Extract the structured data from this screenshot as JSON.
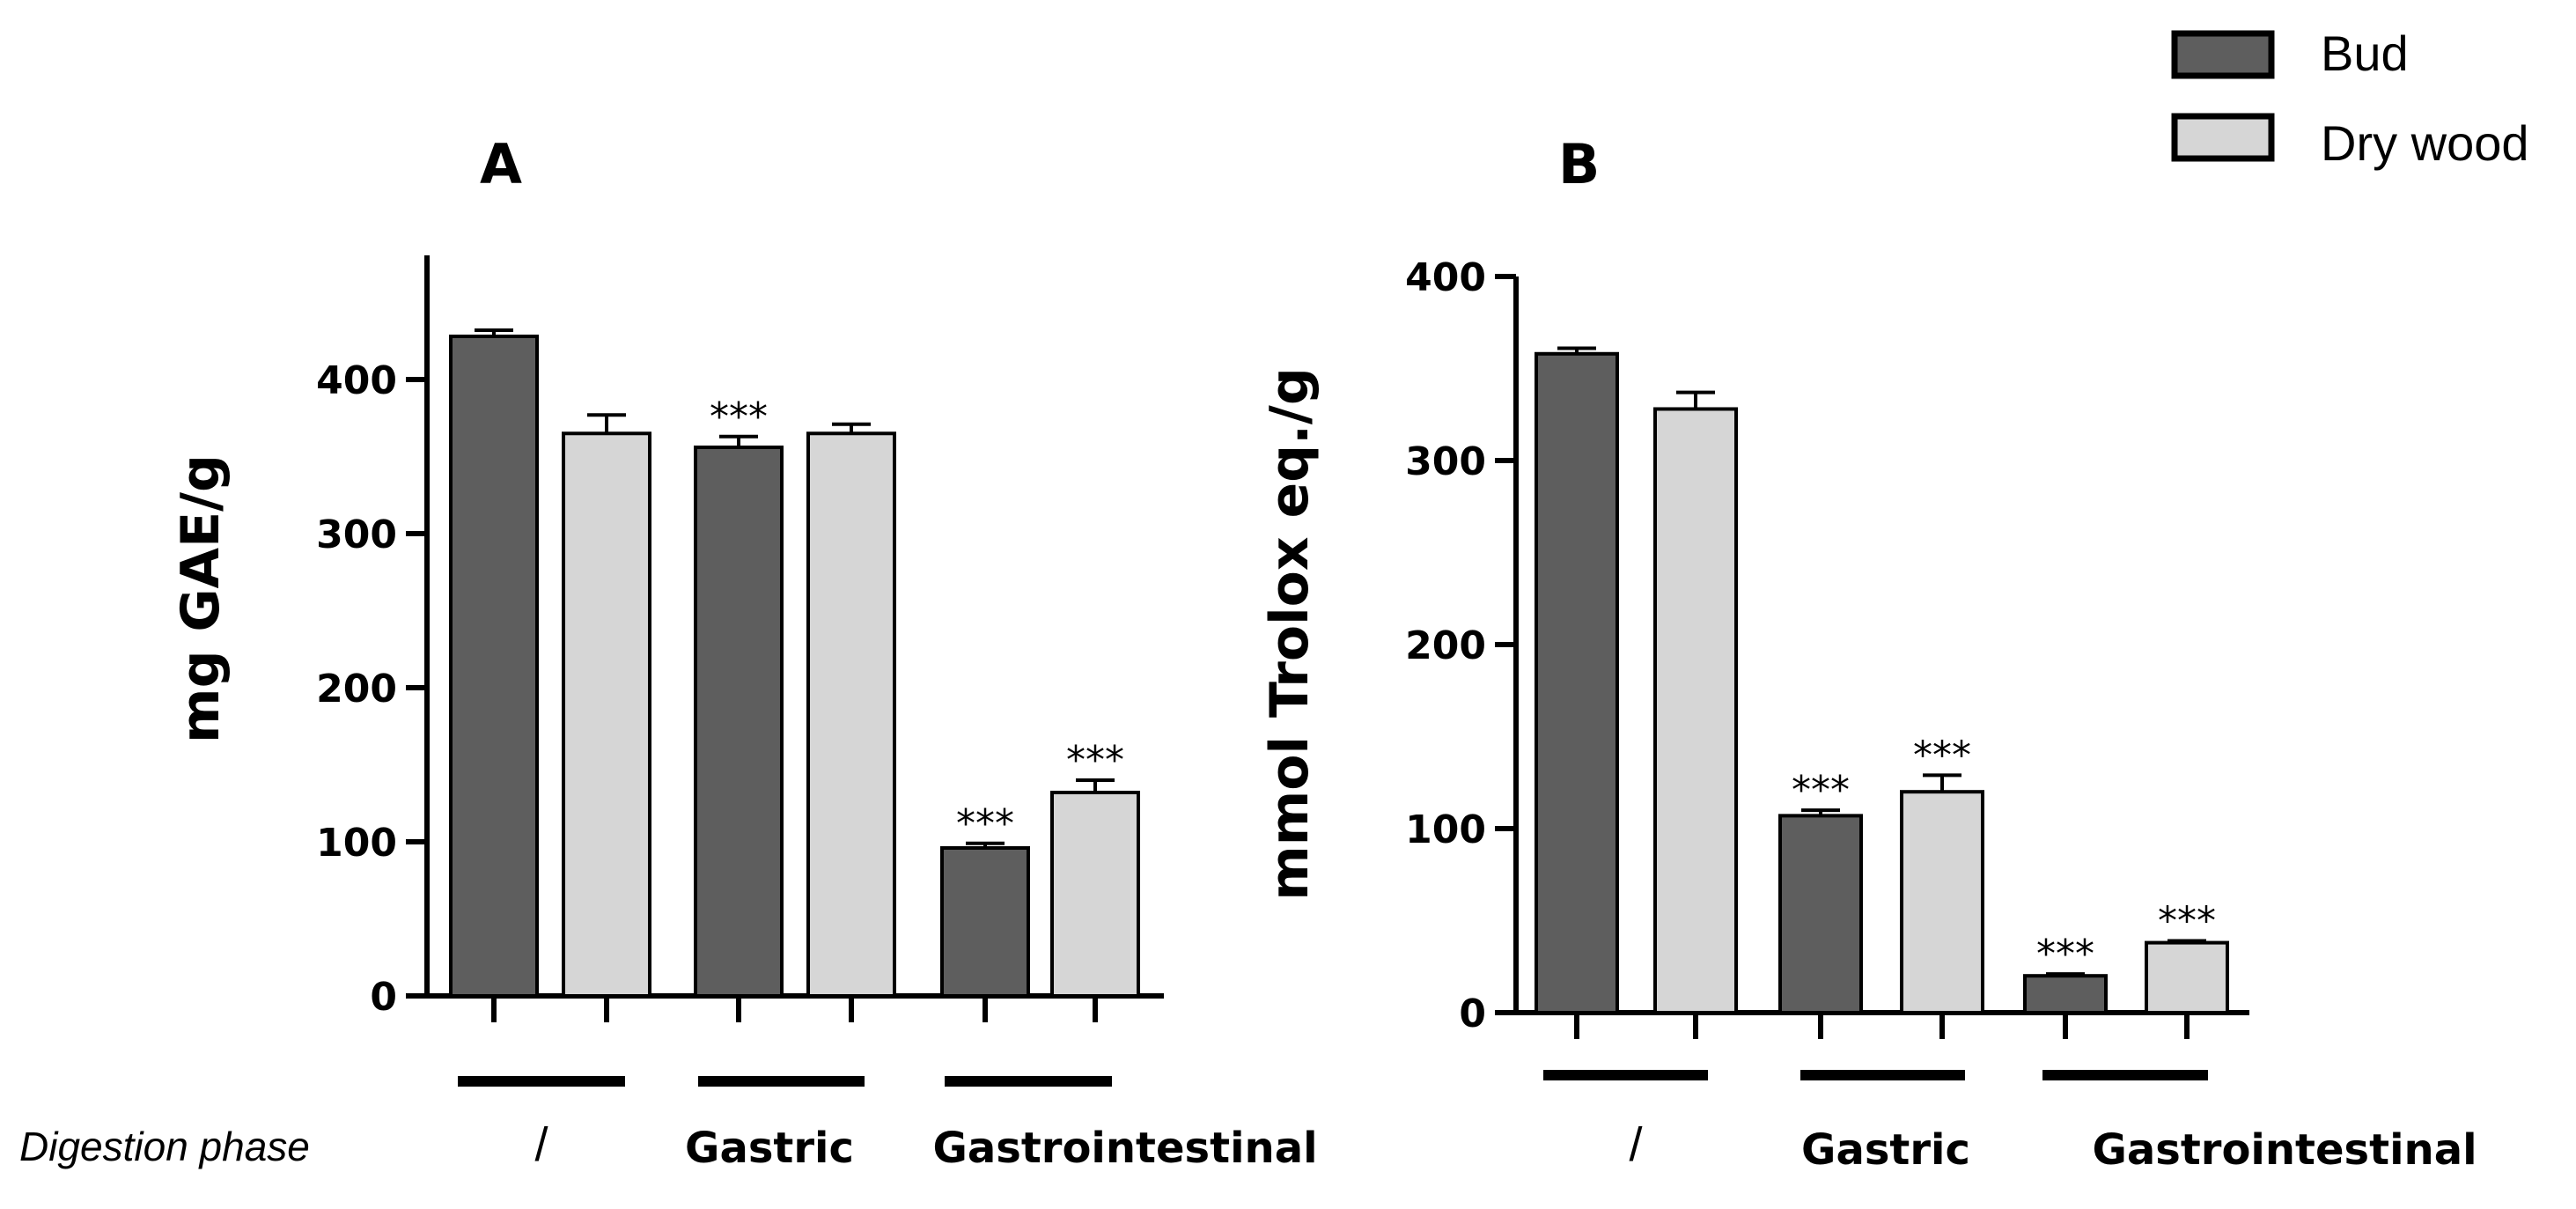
{
  "legend": [
    {
      "name": "Bud",
      "color": "#5e5e5e"
    },
    {
      "name": "Dry wood",
      "color": "#d6d6d6"
    }
  ],
  "x_axis_title": "Digestion phase",
  "chart_data": [
    {
      "type": "bar",
      "panel": "A",
      "ylabel": "mg GAE/g",
      "ylim": [
        0,
        480
      ],
      "yticks": [
        0,
        100,
        200,
        300,
        400
      ],
      "categories": [
        "/",
        "Gastric",
        "Gastrointestinal"
      ],
      "series": [
        {
          "name": "Bud",
          "values": [
            428,
            356,
            96
          ],
          "errors": [
            4,
            7,
            3
          ],
          "significance": [
            "",
            "***",
            "***"
          ]
        },
        {
          "name": "Dry wood",
          "values": [
            365,
            365,
            132
          ],
          "errors": [
            12,
            6,
            8
          ],
          "significance": [
            "",
            "",
            "***"
          ]
        }
      ]
    },
    {
      "type": "bar",
      "panel": "B",
      "ylabel": "mmol Trolox eq./g",
      "ylim": [
        0,
        400
      ],
      "yticks": [
        0,
        100,
        200,
        300,
        400
      ],
      "categories": [
        "/",
        "Gastric",
        "Gastrointestinal"
      ],
      "series": [
        {
          "name": "Bud",
          "values": [
            358,
            107,
            20
          ],
          "errors": [
            3,
            3,
            1
          ],
          "significance": [
            "",
            "***",
            "***"
          ]
        },
        {
          "name": "Dry wood",
          "values": [
            328,
            120,
            38
          ],
          "errors": [
            9,
            9,
            1
          ],
          "significance": [
            "",
            "***",
            "***"
          ]
        }
      ]
    }
  ]
}
